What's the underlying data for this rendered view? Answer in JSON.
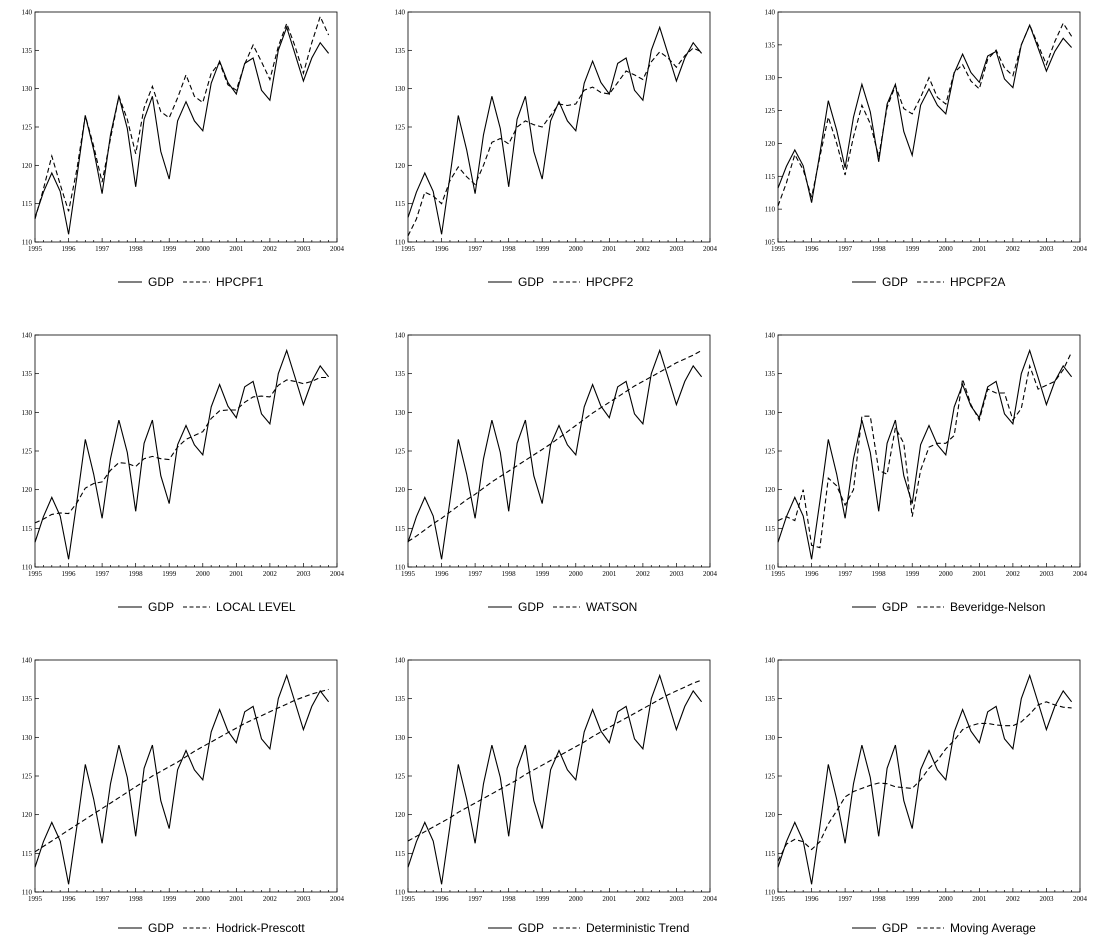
{
  "chart_data": [
    {
      "type": "line",
      "ylim": [
        110,
        140
      ],
      "yticks": [
        "110",
        "115",
        "120",
        "125",
        "130",
        "135",
        "140"
      ],
      "xlim": [
        1995,
        2004
      ],
      "xticks": [
        "1995",
        "1996",
        "1997",
        "1998",
        "1999",
        "2000",
        "2001",
        "2002",
        "2003",
        "2004"
      ],
      "legend": "bottom",
      "series": [
        {
          "name": "GDP",
          "style": "solid"
        },
        {
          "name": "HPCPF1",
          "style": "dashed",
          "values": [
            113.0,
            116.9,
            121.2,
            117.5,
            114.0,
            119.5,
            126.5,
            122.5,
            117.8,
            123.5,
            129.0,
            126.0,
            121.5,
            127.5,
            130.3,
            127.0,
            126.2,
            128.8,
            131.8,
            129.0,
            128.2,
            132.0,
            133.4,
            130.5,
            129.8,
            133.2,
            135.7,
            133.5,
            131.2,
            135.5,
            138.5,
            135.5,
            132.0,
            136.0,
            139.4,
            137.0
          ]
        }
      ]
    },
    {
      "type": "line",
      "ylim": [
        110,
        140
      ],
      "yticks": [
        "110",
        "115",
        "120",
        "125",
        "130",
        "135",
        "140"
      ],
      "xlim": [
        1995,
        2004
      ],
      "xticks": [
        "1995",
        "1996",
        "1997",
        "1998",
        "1999",
        "2000",
        "2001",
        "2002",
        "2003",
        "2004"
      ],
      "legend": "bottom",
      "series": [
        {
          "name": "GDP",
          "style": "solid"
        },
        {
          "name": "HPCPF2",
          "style": "dashed",
          "values": [
            110.8,
            113.0,
            116.5,
            116.0,
            115.0,
            118.0,
            119.8,
            118.5,
            117.5,
            120.0,
            123.0,
            123.5,
            122.8,
            125.0,
            125.8,
            125.3,
            125.0,
            126.5,
            128.0,
            127.8,
            128.0,
            129.8,
            130.2,
            129.5,
            129.3,
            130.8,
            132.3,
            131.8,
            131.2,
            133.5,
            134.8,
            134.0,
            132.8,
            134.3,
            135.3,
            134.8
          ]
        }
      ]
    },
    {
      "type": "line",
      "ylim": [
        105,
        140
      ],
      "yticks": [
        "105",
        "110",
        "115",
        "120",
        "125",
        "130",
        "135",
        "140"
      ],
      "xlim": [
        1995,
        2004
      ],
      "xticks": [
        "1995",
        "1996",
        "1997",
        "1998",
        "1999",
        "2000",
        "2001",
        "2002",
        "2003",
        "2004"
      ],
      "legend": "bottom",
      "series": [
        {
          "name": "GDP",
          "style": "solid"
        },
        {
          "name": "HPCPF2A",
          "style": "dashed",
          "values": [
            110.5,
            114.0,
            118.3,
            116.0,
            111.8,
            118.0,
            124.0,
            120.0,
            115.2,
            121.0,
            125.8,
            123.0,
            118.0,
            125.5,
            128.8,
            125.3,
            124.5,
            127.0,
            130.0,
            127.0,
            126.0,
            130.8,
            132.0,
            129.5,
            128.3,
            132.8,
            134.2,
            131.5,
            130.3,
            135.0,
            138.0,
            135.0,
            132.0,
            135.5,
            138.3,
            136.3
          ]
        }
      ]
    },
    {
      "type": "line",
      "ylim": [
        110,
        140
      ],
      "yticks": [
        "110",
        "115",
        "120",
        "125",
        "130",
        "135",
        "140"
      ],
      "xlim": [
        1995,
        2004
      ],
      "xticks": [
        "1995",
        "1996",
        "1997",
        "1998",
        "1999",
        "2000",
        "2001",
        "2002",
        "2003",
        "2004"
      ],
      "legend": "bottom",
      "series": [
        {
          "name": "GDP",
          "style": "solid"
        },
        {
          "name": "LOCAL LEVEL",
          "style": "dashed",
          "values": [
            115.7,
            116.2,
            116.8,
            117.0,
            116.9,
            118.3,
            120.2,
            120.8,
            121.0,
            122.5,
            123.5,
            123.4,
            123.0,
            124.0,
            124.3,
            124.0,
            123.9,
            125.5,
            126.5,
            127.0,
            127.5,
            129.2,
            130.2,
            130.3,
            130.3,
            131.3,
            132.0,
            132.1,
            132.0,
            133.5,
            134.2,
            134.0,
            133.7,
            134.0,
            134.5,
            134.5
          ]
        }
      ]
    },
    {
      "type": "line",
      "ylim": [
        110,
        140
      ],
      "yticks": [
        "110",
        "115",
        "120",
        "125",
        "130",
        "135",
        "140"
      ],
      "xlim": [
        1995,
        2004
      ],
      "xticks": [
        "1995",
        "1996",
        "1997",
        "1998",
        "1999",
        "2000",
        "2001",
        "2002",
        "2003",
        "2004"
      ],
      "legend": "bottom",
      "series": [
        {
          "name": "GDP",
          "style": "solid"
        },
        {
          "name": "WATSON",
          "style": "dashed",
          "values": [
            113.3,
            114.0,
            114.8,
            115.6,
            116.3,
            117.1,
            117.9,
            118.7,
            119.4,
            120.2,
            121.0,
            121.7,
            122.4,
            123.1,
            123.8,
            124.5,
            125.2,
            125.9,
            126.7,
            127.5,
            128.3,
            129.1,
            129.9,
            130.6,
            131.3,
            132.0,
            132.7,
            133.4,
            134.0,
            134.6,
            135.2,
            135.8,
            136.4,
            136.9,
            137.4,
            138.0
          ]
        }
      ]
    },
    {
      "type": "line",
      "ylim": [
        110,
        140
      ],
      "yticks": [
        "110",
        "115",
        "120",
        "125",
        "130",
        "135",
        "140"
      ],
      "xlim": [
        1995,
        2004
      ],
      "xticks": [
        "1995",
        "1996",
        "1997",
        "1998",
        "1999",
        "2000",
        "2001",
        "2002",
        "2003",
        "2004"
      ],
      "legend": "bottom",
      "series": [
        {
          "name": "GDP",
          "style": "solid"
        },
        {
          "name": "Beveridge-Nelson",
          "style": "dashed",
          "values": [
            116.0,
            116.5,
            116.0,
            120.0,
            112.8,
            112.5,
            121.5,
            120.5,
            118.0,
            120.0,
            129.5,
            129.5,
            122.5,
            122.0,
            128.0,
            126.0,
            116.5,
            122.5,
            125.5,
            126.0,
            126.0,
            127.0,
            134.3,
            131.0,
            129.0,
            133.0,
            132.5,
            132.5,
            129.0,
            130.5,
            136.0,
            133.0,
            133.5,
            134.0,
            135.5,
            137.8
          ]
        }
      ]
    },
    {
      "type": "line",
      "ylim": [
        110,
        140
      ],
      "yticks": [
        "110",
        "115",
        "120",
        "125",
        "130",
        "135",
        "140"
      ],
      "xlim": [
        1995,
        2004
      ],
      "xticks": [
        "1995",
        "1996",
        "1997",
        "1998",
        "1999",
        "2000",
        "2001",
        "2002",
        "2003",
        "2004"
      ],
      "legend": "bottom",
      "series": [
        {
          "name": "GDP",
          "style": "solid"
        },
        {
          "name": "Hodrick-Prescott",
          "style": "dashed",
          "values": [
            115.2,
            115.9,
            116.6,
            117.3,
            118.0,
            118.7,
            119.4,
            120.1,
            120.8,
            121.5,
            122.2,
            122.9,
            123.6,
            124.3,
            125.0,
            125.6,
            126.2,
            126.8,
            127.5,
            128.2,
            128.8,
            129.4,
            130.0,
            130.6,
            131.2,
            131.8,
            132.3,
            132.8,
            133.3,
            133.8,
            134.3,
            134.8,
            135.2,
            135.6,
            135.9,
            136.2
          ]
        }
      ]
    },
    {
      "type": "line",
      "ylim": [
        110,
        140
      ],
      "yticks": [
        "110",
        "115",
        "120",
        "125",
        "130",
        "135",
        "140"
      ],
      "xlim": [
        1995,
        2004
      ],
      "xticks": [
        "1995",
        "1996",
        "1997",
        "1998",
        "1999",
        "2000",
        "2001",
        "2002",
        "2003",
        "2004"
      ],
      "legend": "bottom",
      "series": [
        {
          "name": "GDP",
          "style": "solid"
        },
        {
          "name": "Deterministic Trend",
          "style": "dashed",
          "values": [
            116.6,
            117.2,
            117.8,
            118.4,
            119.0,
            119.6,
            120.3,
            120.9,
            121.5,
            122.1,
            122.7,
            123.3,
            123.9,
            124.5,
            125.2,
            125.8,
            126.4,
            127.0,
            127.6,
            128.2,
            128.8,
            129.4,
            130.1,
            130.7,
            131.3,
            131.9,
            132.5,
            133.1,
            133.7,
            134.3,
            134.9,
            135.5,
            136.0,
            136.5,
            137.0,
            137.4
          ]
        }
      ]
    },
    {
      "type": "line",
      "ylim": [
        110,
        140
      ],
      "yticks": [
        "110",
        "115",
        "120",
        "125",
        "130",
        "135",
        "140"
      ],
      "xlim": [
        1995,
        2004
      ],
      "xticks": [
        "1995",
        "1996",
        "1997",
        "1998",
        "1999",
        "2000",
        "2001",
        "2002",
        "2003",
        "2004"
      ],
      "legend": "bottom",
      "series": [
        {
          "name": "GDP",
          "style": "solid"
        },
        {
          "name": "Moving Average",
          "style": "dashed",
          "values": [
            114.0,
            116.2,
            116.8,
            116.5,
            115.5,
            116.5,
            118.8,
            120.5,
            122.3,
            123.0,
            123.4,
            123.8,
            124.1,
            124.0,
            123.6,
            123.5,
            123.4,
            124.5,
            126.0,
            127.0,
            128.5,
            129.6,
            131.0,
            131.5,
            131.8,
            131.8,
            131.6,
            131.5,
            131.5,
            132.0,
            133.0,
            134.2,
            134.6,
            134.2,
            133.9,
            133.8
          ]
        }
      ]
    }
  ],
  "gdp_values": [
    113.2,
    116.5,
    119.0,
    116.6,
    111.0,
    118.5,
    126.5,
    122.0,
    116.3,
    124.0,
    129.0,
    124.8,
    117.2,
    126.0,
    129.0,
    121.8,
    118.2,
    125.8,
    128.3,
    125.8,
    124.5,
    130.7,
    133.6,
    130.8,
    129.3,
    133.3,
    134.0,
    129.8,
    128.5,
    135.0,
    138.0,
    134.5,
    131.0,
    134.0,
    136.0,
    134.6
  ]
}
